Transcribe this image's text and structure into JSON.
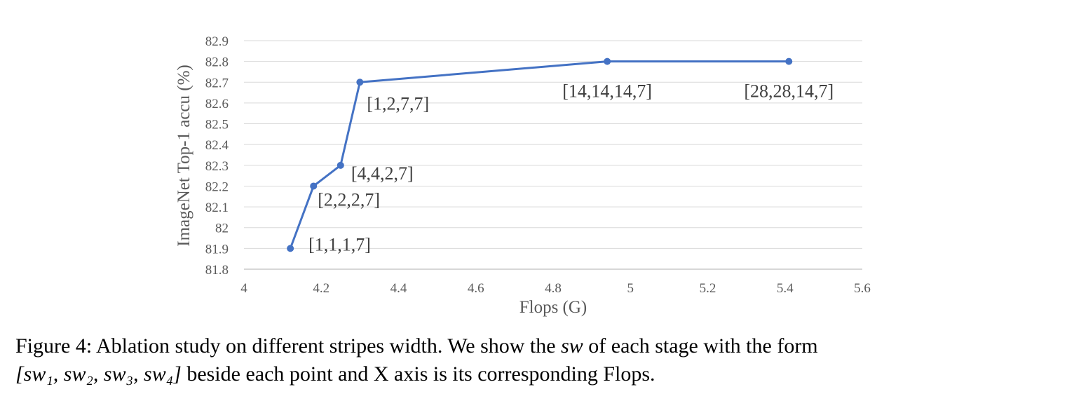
{
  "chart_data": {
    "type": "line",
    "xlabel": "Flops (G)",
    "ylabel": "ImageNet Top-1 accu (%)",
    "xlim": [
      4,
      5.6
    ],
    "ylim": [
      81.8,
      82.9
    ],
    "x_ticks": [
      "4",
      "4.2",
      "4.4",
      "4.6",
      "4.8",
      "5",
      "5.2",
      "5.4",
      "5.6"
    ],
    "y_ticks": [
      "81.8",
      "81.9",
      "82",
      "82.1",
      "82.2",
      "82.3",
      "82.4",
      "82.5",
      "82.6",
      "82.7",
      "82.8",
      "82.9"
    ],
    "grid": "horizontal",
    "color": "#4472C4",
    "points": [
      {
        "x": 4.12,
        "y": 81.9,
        "label": "[1,1,1,7]"
      },
      {
        "x": 4.18,
        "y": 82.2,
        "label": "[2,2,2,7]"
      },
      {
        "x": 4.25,
        "y": 82.3,
        "label": "[4,4,2,7]"
      },
      {
        "x": 4.3,
        "y": 82.7,
        "label": "[1,2,7,7]"
      },
      {
        "x": 4.94,
        "y": 82.8,
        "label": "[14,14,14,7]"
      },
      {
        "x": 5.41,
        "y": 82.8,
        "label": "[28,28,14,7]"
      }
    ]
  },
  "caption": {
    "prefix": "Figure 4: Ablation study on different stripes width. We show the ",
    "sw": "sw",
    "middle": " of each stage with the form",
    "form": "[sw₁, sw₂, sw₃, sw₄]",
    "suffix": " beside each point and X axis is its corresponding Flops."
  }
}
